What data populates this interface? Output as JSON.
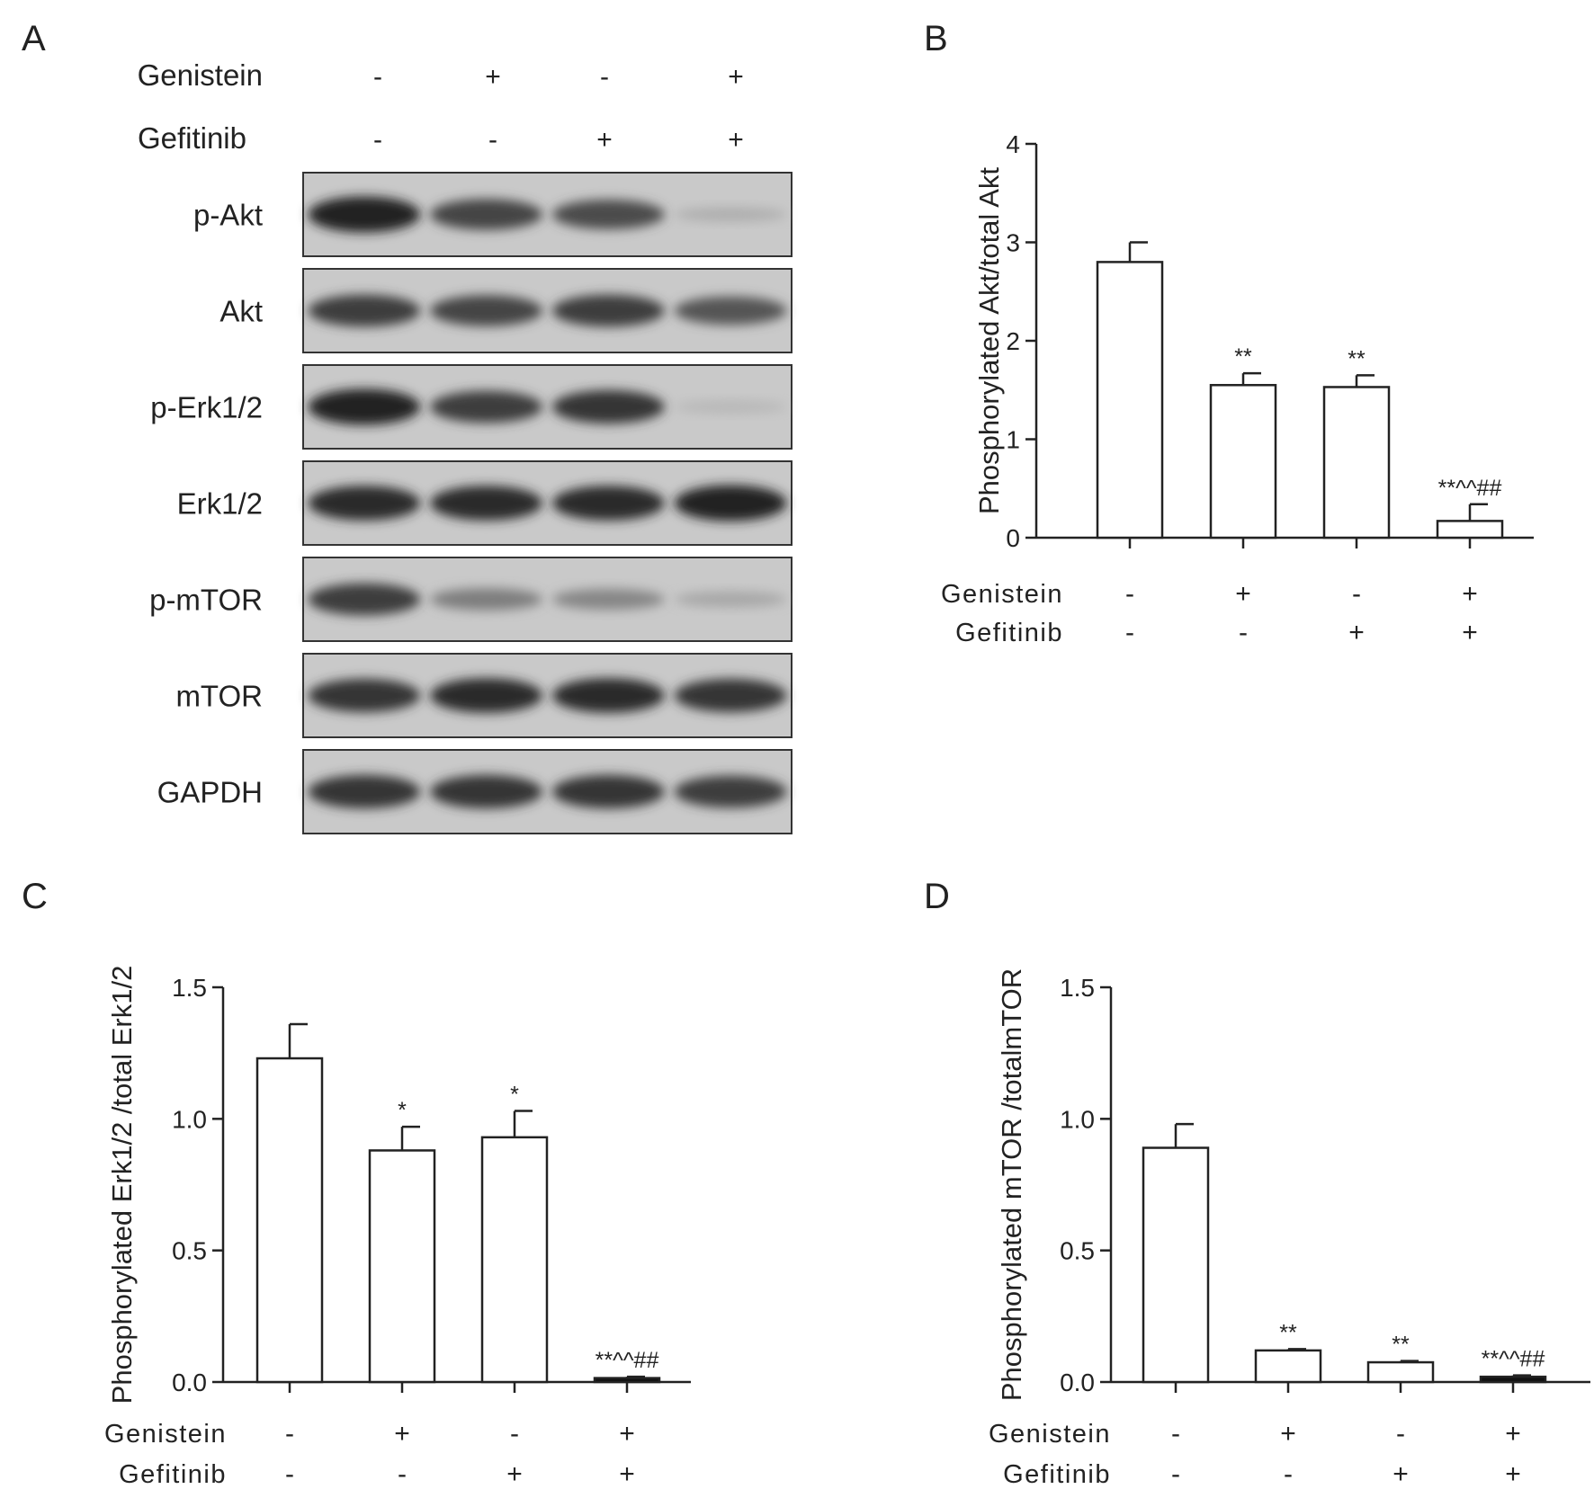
{
  "panels": {
    "A": {
      "letter": "A",
      "conditions": [
        {
          "label": "Genistein",
          "signs": [
            "-",
            "+",
            "-",
            "+"
          ]
        },
        {
          "label": "Gefitinib",
          "signs": [
            "-",
            "-",
            "+",
            "+"
          ]
        }
      ],
      "blots": [
        {
          "label": "p-Akt",
          "intensity": [
            1.0,
            0.8,
            0.75,
            0.15
          ]
        },
        {
          "label": "Akt",
          "intensity": [
            0.85,
            0.8,
            0.85,
            0.7
          ]
        },
        {
          "label": "p-Erk1/2",
          "intensity": [
            1.0,
            0.85,
            0.9,
            0.1
          ]
        },
        {
          "label": "Erk1/2",
          "intensity": [
            0.95,
            0.95,
            0.95,
            1.0
          ]
        },
        {
          "label": "p-mTOR",
          "intensity": [
            0.85,
            0.45,
            0.4,
            0.2
          ]
        },
        {
          "label": "mTOR",
          "intensity": [
            0.9,
            0.95,
            0.95,
            0.9
          ]
        },
        {
          "label": "GAPDH",
          "intensity": [
            0.9,
            0.9,
            0.9,
            0.85
          ]
        }
      ]
    },
    "B": {
      "letter": "B"
    },
    "C": {
      "letter": "C"
    },
    "D": {
      "letter": "D"
    }
  },
  "chart_data": [
    {
      "panel": "B",
      "type": "bar",
      "ylabel": "Phosphorylated Akt/total Akt",
      "ylim": [
        0,
        4
      ],
      "yticks": [
        "0",
        "1",
        "2",
        "3",
        "4"
      ],
      "values": [
        2.8,
        1.55,
        1.53,
        0.17
      ],
      "errors": [
        0.2,
        0.12,
        0.12,
        0.17
      ],
      "annotations": [
        "",
        "**",
        "**",
        "**^^##"
      ],
      "conditions": [
        {
          "label": "Genistein",
          "signs": [
            "-",
            "+",
            "-",
            "+"
          ]
        },
        {
          "label": "Gefitinib",
          "signs": [
            "-",
            "-",
            "+",
            "+"
          ]
        }
      ]
    },
    {
      "panel": "C",
      "type": "bar",
      "ylabel": "Phosphorylated Erk1/2 /total Erk1/2",
      "ylim": [
        0,
        1.5
      ],
      "yticks": [
        "0.0",
        "0.5",
        "1.0",
        "1.5"
      ],
      "values": [
        1.23,
        0.88,
        0.93,
        0.015
      ],
      "errors": [
        0.13,
        0.09,
        0.1,
        0.005
      ],
      "annotations": [
        "",
        "*",
        "*",
        "**^^##"
      ],
      "conditions": [
        {
          "label": "Genistein",
          "signs": [
            "-",
            "+",
            "-",
            "+"
          ]
        },
        {
          "label": "Gefitinib",
          "signs": [
            "-",
            "-",
            "+",
            "+"
          ]
        }
      ]
    },
    {
      "panel": "D",
      "type": "bar",
      "ylabel": "Phosphorylated mTOR /totalmTOR",
      "ylim": [
        0,
        1.5
      ],
      "yticks": [
        "0.0",
        "0.5",
        "1.0",
        "1.5"
      ],
      "values": [
        0.89,
        0.12,
        0.075,
        0.02
      ],
      "errors": [
        0.09,
        0.005,
        0.005,
        0.005
      ],
      "annotations": [
        "",
        "**",
        "**",
        "**^^##"
      ],
      "conditions": [
        {
          "label": "Genistein",
          "signs": [
            "-",
            "+",
            "-",
            "+"
          ]
        },
        {
          "label": "Gefitinib",
          "signs": [
            "-",
            "-",
            "+",
            "+"
          ]
        }
      ]
    }
  ]
}
